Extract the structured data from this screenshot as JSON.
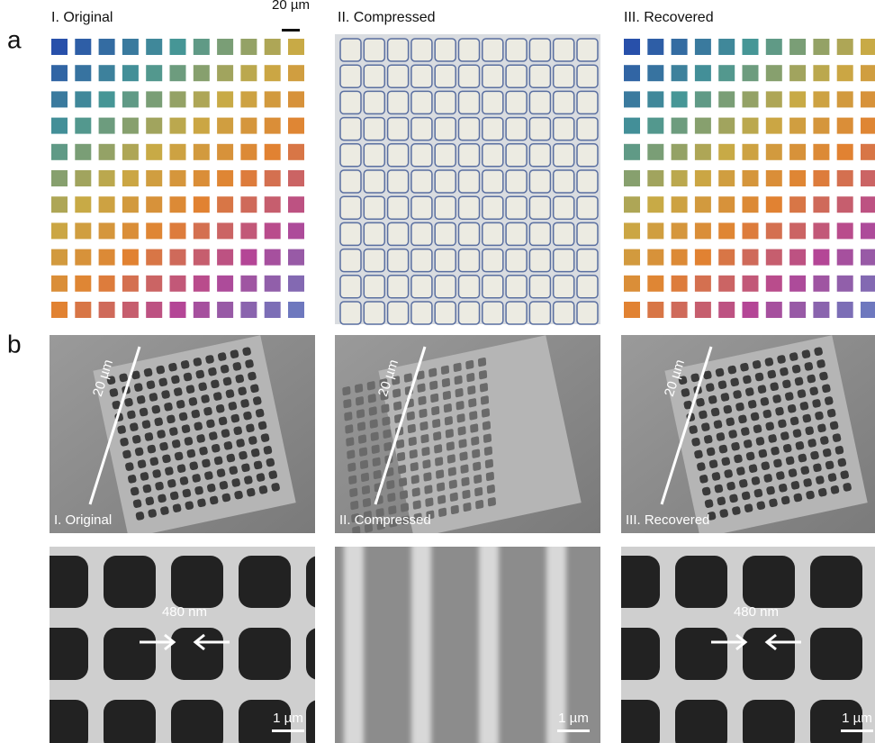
{
  "panel_labels": [
    "a",
    "b"
  ],
  "row_a": {
    "titles": [
      "I. Original",
      "II. Compressed",
      "III. Recovered"
    ],
    "scale_bar": "20 µm"
  },
  "row_b": {
    "scale_labels": [
      "20 µm",
      "20 µm",
      "20 µm"
    ],
    "titles": [
      "I. Original",
      "II. Compressed",
      "III. Recovered"
    ]
  },
  "row_c": {
    "spacing_labels": [
      "480 nm",
      "480 nm"
    ],
    "scale_bars": [
      "1 µm",
      "1 µm",
      "1 µm"
    ]
  }
}
